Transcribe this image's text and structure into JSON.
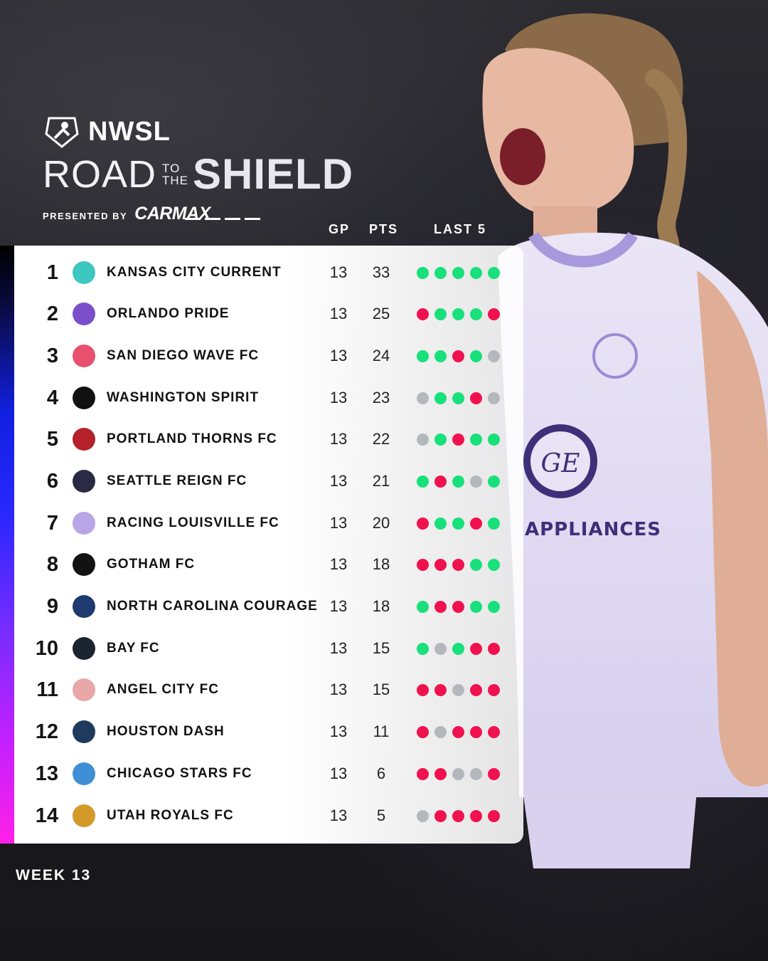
{
  "header": {
    "league": "NWSL",
    "title_road": "ROAD",
    "title_to": "TO",
    "title_the": "THE",
    "title_shield": "SHIELD",
    "presented_by": "PRESENTED BY",
    "sponsor": "CARMAX"
  },
  "columns": {
    "gp": "GP",
    "pts": "PTS",
    "last5": "LAST 5"
  },
  "standings": [
    {
      "rank": "1",
      "team": "KANSAS CITY CURRENT",
      "gp": "13",
      "pts": "33",
      "last5": [
        "W",
        "W",
        "W",
        "W",
        "W"
      ],
      "crest_color": "#3ec6c0"
    },
    {
      "rank": "2",
      "team": "ORLANDO PRIDE",
      "gp": "13",
      "pts": "25",
      "last5": [
        "L",
        "W",
        "W",
        "W",
        "L"
      ],
      "crest_color": "#7b4fc9"
    },
    {
      "rank": "3",
      "team": "SAN DIEGO WAVE FC",
      "gp": "13",
      "pts": "24",
      "last5": [
        "W",
        "W",
        "L",
        "W",
        "D"
      ],
      "crest_color": "#e8506e"
    },
    {
      "rank": "4",
      "team": "WASHINGTON SPIRIT",
      "gp": "13",
      "pts": "23",
      "last5": [
        "D",
        "W",
        "W",
        "L",
        "D"
      ],
      "crest_color": "#111111"
    },
    {
      "rank": "5",
      "team": "PORTLAND THORNS FC",
      "gp": "13",
      "pts": "22",
      "last5": [
        "D",
        "W",
        "L",
        "W",
        "W"
      ],
      "crest_color": "#b5222a"
    },
    {
      "rank": "6",
      "team": "SEATTLE REIGN FC",
      "gp": "13",
      "pts": "21",
      "last5": [
        "W",
        "L",
        "W",
        "D",
        "W"
      ],
      "crest_color": "#2a2a44"
    },
    {
      "rank": "7",
      "team": "RACING LOUISVILLE FC",
      "gp": "13",
      "pts": "20",
      "last5": [
        "L",
        "W",
        "W",
        "L",
        "W"
      ],
      "crest_color": "#b9a6e8"
    },
    {
      "rank": "8",
      "team": "GOTHAM FC",
      "gp": "13",
      "pts": "18",
      "last5": [
        "L",
        "L",
        "L",
        "W",
        "W"
      ],
      "crest_color": "#121212"
    },
    {
      "rank": "9",
      "team": "NORTH CAROLINA COURAGE",
      "gp": "13",
      "pts": "18",
      "last5": [
        "W",
        "L",
        "L",
        "W",
        "W"
      ],
      "crest_color": "#1e3a6e"
    },
    {
      "rank": "10",
      "team": "BAY FC",
      "gp": "13",
      "pts": "15",
      "last5": [
        "W",
        "D",
        "W",
        "L",
        "L"
      ],
      "crest_color": "#1b2430"
    },
    {
      "rank": "11",
      "team": "ANGEL CITY FC",
      "gp": "13",
      "pts": "15",
      "last5": [
        "L",
        "L",
        "D",
        "L",
        "L"
      ],
      "crest_color": "#e9a7a7"
    },
    {
      "rank": "12",
      "team": "HOUSTON DASH",
      "gp": "13",
      "pts": "11",
      "last5": [
        "L",
        "D",
        "L",
        "L",
        "L"
      ],
      "crest_color": "#1e3a5c"
    },
    {
      "rank": "13",
      "team": "CHICAGO STARS FC",
      "gp": "13",
      "pts": "6",
      "last5": [
        "L",
        "L",
        "D",
        "D",
        "L"
      ],
      "crest_color": "#3f8fd6"
    },
    {
      "rank": "14",
      "team": "UTAH ROYALS FC",
      "gp": "13",
      "pts": "5",
      "last5": [
        "D",
        "L",
        "L",
        "L",
        "L"
      ],
      "crest_color": "#d39a2a"
    }
  ],
  "footer": {
    "week": "WEEK 13"
  },
  "colors": {
    "win": "#18e07a",
    "loss": "#f0124e",
    "draw": "#b4b8bd"
  }
}
